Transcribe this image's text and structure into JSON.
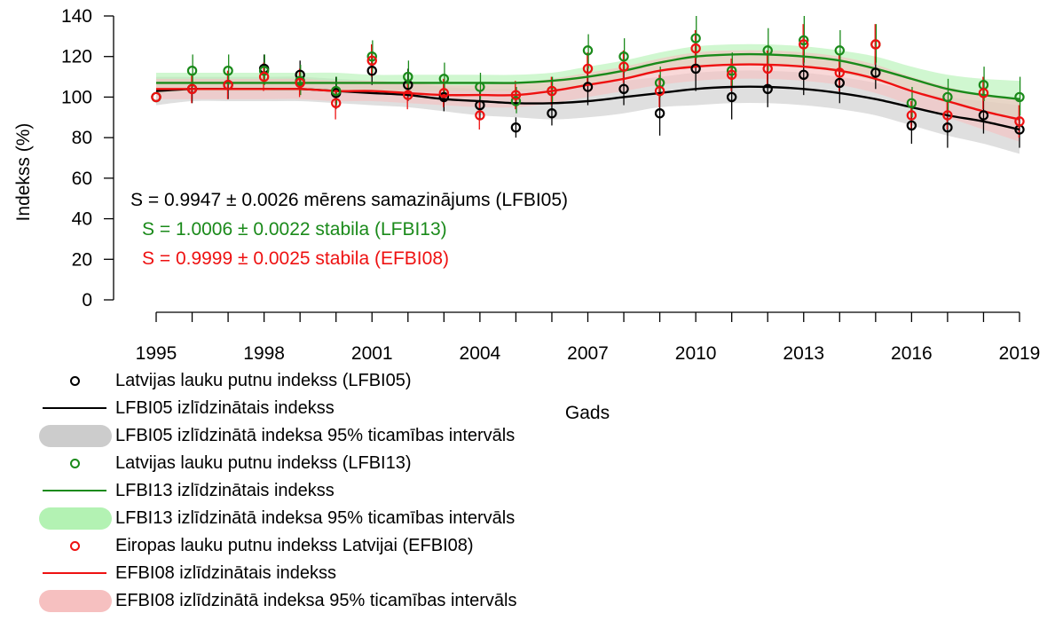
{
  "chart_data": {
    "type": "line",
    "ylabel": "Indekss (%)",
    "xlabel": "Gads",
    "xlim": [
      1995,
      2019
    ],
    "ylim": [
      0,
      140
    ],
    "xticks": [
      1995,
      1998,
      2001,
      2004,
      2007,
      2010,
      2013,
      2016,
      2019
    ],
    "yticks": [
      0,
      20,
      40,
      60,
      80,
      100,
      120,
      140
    ],
    "x": [
      1995,
      1996,
      1997,
      1998,
      1999,
      2000,
      2001,
      2002,
      2003,
      2004,
      2005,
      2006,
      2007,
      2008,
      2009,
      2010,
      2011,
      2012,
      2013,
      2014,
      2015,
      2016,
      2017,
      2018,
      2019
    ],
    "series": [
      {
        "name": "LFBI05",
        "color": "#000000",
        "band_color": "#cccccc",
        "points": [
          100,
          104,
          106,
          114,
          111,
          102,
          113,
          106,
          100,
          96,
          85,
          92,
          105,
          104,
          92,
          114,
          100,
          104,
          111,
          107,
          112,
          86,
          85,
          91,
          84
        ],
        "error_low": [
          100,
          97,
          99,
          107,
          104,
          94,
          106,
          98,
          93,
          89,
          80,
          86,
          96,
          96,
          81,
          103,
          89,
          95,
          101,
          97,
          104,
          77,
          75,
          82,
          75
        ],
        "error_high": [
          100,
          111,
          113,
          121,
          118,
          110,
          121,
          114,
          107,
          103,
          90,
          98,
          114,
          112,
          103,
          125,
          111,
          113,
          121,
          117,
          120,
          95,
          95,
          100,
          93
        ],
        "smoothed": [
          103,
          104,
          104,
          104,
          104,
          103,
          102,
          101,
          99,
          98,
          97,
          97,
          98,
          100,
          102,
          104,
          105,
          105,
          104,
          102,
          99,
          95,
          91,
          88,
          84
        ],
        "ci_low": [
          96,
          98,
          98,
          98,
          98,
          97,
          96,
          95,
          93,
          91,
          90,
          89,
          90,
          92,
          95,
          96,
          97,
          97,
          96,
          94,
          91,
          86,
          81,
          77,
          72
        ],
        "ci_high": [
          110,
          110,
          110,
          110,
          110,
          109,
          108,
          107,
          105,
          104,
          104,
          104,
          106,
          108,
          110,
          112,
          113,
          113,
          112,
          110,
          107,
          103,
          100,
          98,
          96
        ]
      },
      {
        "name": "LFBI13",
        "color": "#1a8a1a",
        "band_color": "#b3f2b3",
        "points": [
          100,
          113,
          113,
          113,
          108,
          103,
          120,
          110,
          109,
          105,
          98,
          103,
          123,
          120,
          107,
          129,
          113,
          123,
          128,
          123,
          126,
          97,
          100,
          106,
          100
        ],
        "error_low": [
          100,
          105,
          106,
          106,
          101,
          96,
          112,
          103,
          102,
          99,
          92,
          97,
          114,
          112,
          100,
          119,
          105,
          113,
          117,
          114,
          117,
          90,
          92,
          98,
          91
        ],
        "error_high": [
          100,
          121,
          121,
          121,
          116,
          110,
          128,
          118,
          117,
          112,
          105,
          110,
          131,
          129,
          115,
          140,
          122,
          134,
          140,
          133,
          136,
          105,
          109,
          115,
          110
        ],
        "smoothed": [
          107,
          107,
          107,
          107,
          107,
          107,
          107,
          107,
          107,
          107,
          107,
          108,
          110,
          113,
          117,
          120,
          121,
          121,
          120,
          118,
          114,
          109,
          104,
          101,
          99
        ],
        "ci_low": [
          102,
          103,
          103,
          103,
          103,
          103,
          103,
          103,
          103,
          103,
          103,
          104,
          106,
          109,
          112,
          115,
          116,
          116,
          115,
          112,
          108,
          103,
          97,
          93,
          90
        ],
        "ci_high": [
          112,
          112,
          112,
          112,
          112,
          112,
          111,
          111,
          111,
          111,
          111,
          112,
          115,
          118,
          122,
          125,
          126,
          126,
          125,
          123,
          120,
          115,
          111,
          109,
          108
        ]
      },
      {
        "name": "EFBI08",
        "color": "#ee1111",
        "band_color": "#f6c0c0",
        "points": [
          100,
          104,
          106,
          110,
          107,
          97,
          118,
          101,
          102,
          91,
          101,
          103,
          114,
          115,
          103,
          124,
          111,
          114,
          126,
          112,
          126,
          91,
          91,
          102,
          88
        ],
        "error_low": [
          100,
          97,
          99,
          103,
          100,
          89,
          110,
          94,
          95,
          84,
          94,
          96,
          106,
          107,
          95,
          115,
          103,
          105,
          116,
          103,
          116,
          84,
          84,
          94,
          80
        ],
        "error_high": [
          100,
          111,
          113,
          117,
          114,
          105,
          126,
          108,
          109,
          98,
          108,
          110,
          122,
          123,
          111,
          133,
          119,
          123,
          136,
          121,
          136,
          98,
          98,
          110,
          96
        ],
        "smoothed": [
          104,
          104,
          104,
          104,
          104,
          103,
          103,
          102,
          101,
          101,
          101,
          103,
          106,
          109,
          113,
          115,
          116,
          116,
          115,
          113,
          109,
          103,
          98,
          93,
          89
        ],
        "ci_low": [
          99,
          99,
          99,
          99,
          99,
          98,
          98,
          97,
          96,
          95,
          95,
          97,
          100,
          103,
          106,
          108,
          109,
          109,
          108,
          106,
          102,
          96,
          90,
          84,
          78
        ],
        "ci_high": [
          109,
          109,
          109,
          109,
          109,
          108,
          108,
          107,
          106,
          106,
          107,
          109,
          112,
          115,
          119,
          122,
          123,
          123,
          122,
          120,
          116,
          110,
          105,
          101,
          99
        ]
      }
    ],
    "annotations": [
      {
        "text": "S = 0.9947 ± 0.0026 mērens samazinājums (LFBI05)",
        "color": "#000000"
      },
      {
        "text": "S = 1.0006 ± 0.0022 stabila (LFBI13)",
        "color": "#1a8a1a"
      },
      {
        "text": "S = 0.9999 ± 0.0025 stabila (EFBI08)",
        "color": "#ee1111"
      }
    ]
  },
  "legend": {
    "placement": "bottom-left",
    "items": [
      {
        "label": "Latvijas lauku putnu indekss (LFBI05)",
        "kind": "point",
        "color": "#000000"
      },
      {
        "label": "LFBI05 izlīdzinātais indekss",
        "kind": "line",
        "color": "#000000"
      },
      {
        "label": "LFBI05 izlīdzinātā indeksa 95% ticamības intervāls",
        "kind": "band",
        "color": "#cccccc"
      },
      {
        "label": "Latvijas lauku putnu indekss (LFBI13)",
        "kind": "point",
        "color": "#1a8a1a"
      },
      {
        "label": "LFBI13 izlīdzinātais indekss",
        "kind": "line",
        "color": "#1a8a1a"
      },
      {
        "label": "LFBI13 izlīdzinātā indeksa 95% ticamības intervāls",
        "kind": "band",
        "color": "#b3f2b3"
      },
      {
        "label": "Eiropas lauku putnu indekss Latvijai (EFBI08)",
        "kind": "point",
        "color": "#ee1111"
      },
      {
        "label": "EFBI08 izlīdzinātais indekss",
        "kind": "line",
        "color": "#ee1111"
      },
      {
        "label": "EFBI08 izlīdzinātā indeksa 95% ticamības intervāls",
        "kind": "band",
        "color": "#f6c0c0"
      }
    ]
  }
}
